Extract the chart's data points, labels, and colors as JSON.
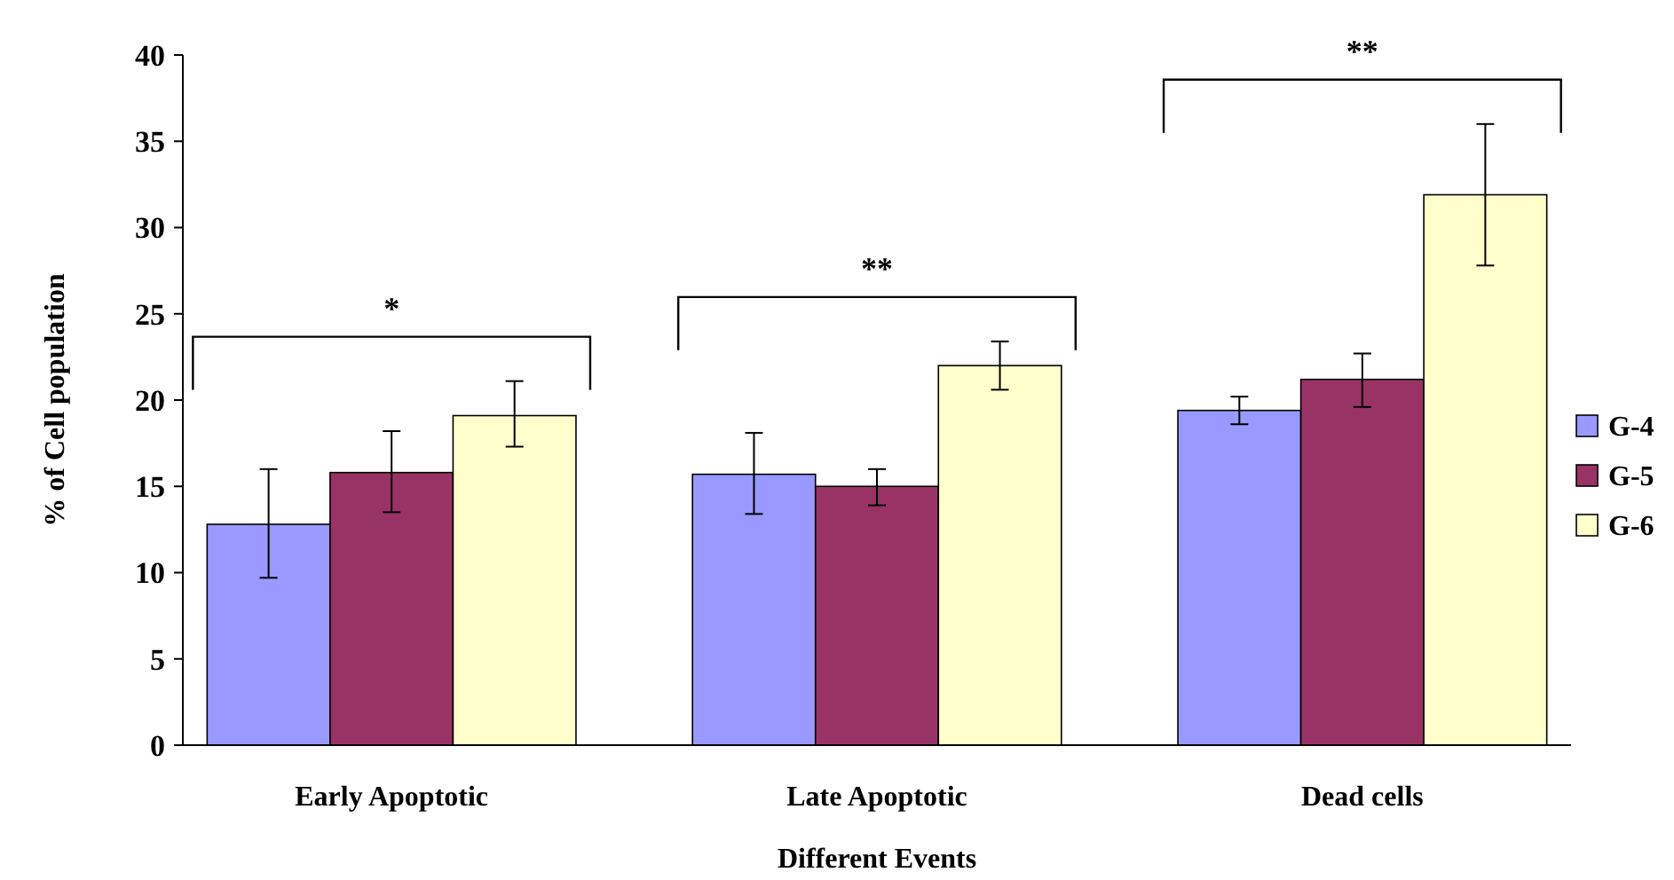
{
  "chart_data": {
    "type": "bar",
    "xlabel": "Different Events",
    "ylabel": "% of Cell population",
    "categories": [
      "Early Apoptotic",
      "Late Apoptotic",
      "Dead cells"
    ],
    "series": [
      {
        "name": "G-4",
        "color": "#9999ff",
        "values": [
          12.8,
          15.7,
          19.4
        ],
        "errors": [
          [
            9.7,
            16
          ],
          [
            13.4,
            18.1
          ],
          [
            18.6,
            20.2
          ]
        ]
      },
      {
        "name": "G-5",
        "color": "#993366",
        "values": [
          15.8,
          15,
          21.2
        ],
        "errors": [
          [
            13.5,
            18.2
          ],
          [
            13.9,
            16
          ],
          [
            19.6,
            22.7
          ]
        ]
      },
      {
        "name": "G-6",
        "color": "#ffffcc",
        "values": [
          19.1,
          22,
          31.9
        ],
        "errors": [
          [
            17.3,
            21.1
          ],
          [
            20.6,
            23.4
          ],
          [
            27.8,
            36
          ]
        ]
      }
    ],
    "ylim": [
      0,
      40
    ],
    "yticks": [
      0,
      5,
      10,
      15,
      20,
      25,
      30,
      35,
      40
    ],
    "grid": false,
    "legend": "right",
    "annotations": [
      "*",
      "**",
      "**"
    ]
  }
}
